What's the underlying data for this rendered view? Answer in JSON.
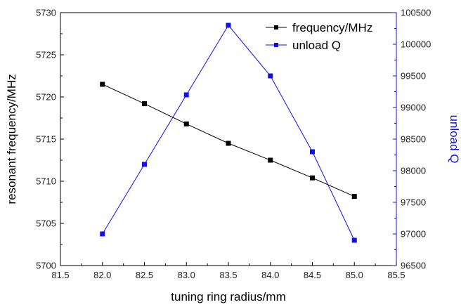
{
  "chart_data": {
    "type": "line",
    "xlabel": "tuning ring radius/mm",
    "ylabel_left": "resonant frequency/MHz",
    "ylabel_right": "unload Q",
    "xlim": [
      81.5,
      85.5
    ],
    "ylim_left": [
      5700,
      5730
    ],
    "ylim_right": [
      96500,
      100500
    ],
    "x_ticks": [
      "81.5",
      "82.0",
      "82.5",
      "83.0",
      "83.5",
      "84.0",
      "84.5",
      "85.0",
      "85.5"
    ],
    "y_left_ticks": [
      "5700",
      "5705",
      "5710",
      "5715",
      "5720",
      "5725",
      "5730"
    ],
    "y_right_ticks": [
      "96500",
      "97000",
      "97500",
      "98000",
      "98500",
      "99000",
      "99500",
      "100000",
      "100500"
    ],
    "legend_position": "top-right",
    "grid": false,
    "series": [
      {
        "name": "frequency/MHz",
        "axis": "left",
        "color": "#000000",
        "x": [
          82.0,
          82.5,
          83.0,
          83.5,
          84.0,
          84.5,
          85.0
        ],
        "values": [
          5721.5,
          5719.2,
          5716.8,
          5714.5,
          5712.5,
          5710.4,
          5708.2
        ]
      },
      {
        "name": "unload Q",
        "axis": "right",
        "color": "#1010ee",
        "x": [
          82.0,
          82.5,
          83.0,
          83.5,
          84.0,
          84.5,
          85.0
        ],
        "values": [
          97000,
          98100,
          99200,
          100300,
          99500,
          98300,
          96900
        ]
      }
    ]
  }
}
